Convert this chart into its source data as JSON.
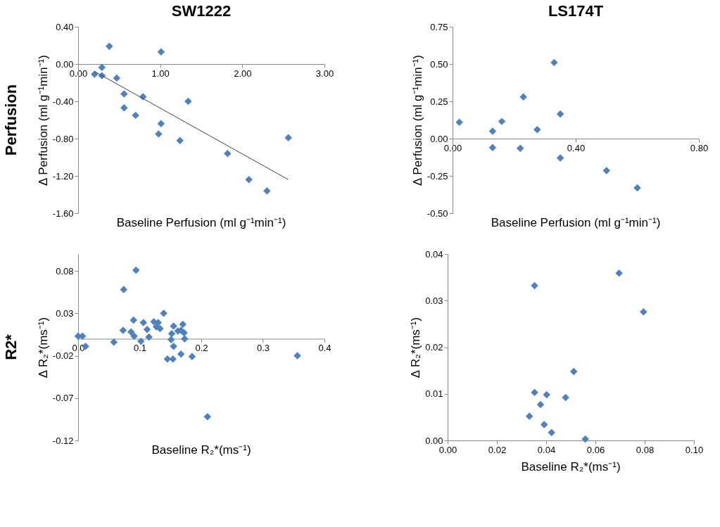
{
  "chart_data": [
    {
      "type": "scatter",
      "title": "SW1222",
      "xlabel": "Baseline Perfusion (ml g⁻¹min⁻¹)",
      "ylabel": "Δ Perfusion (ml g⁻¹min⁻¹)",
      "annotations": [
        "Perfusion"
      ],
      "marker": "diamond",
      "grid": false,
      "xlim": [
        0,
        3
      ],
      "xticks": [
        {
          "value": 0,
          "label": "0.00"
        },
        {
          "value": 1,
          "label": "1.00"
        },
        {
          "value": 2,
          "label": "2.00"
        },
        {
          "value": 3,
          "label": "3.00"
        }
      ],
      "ylim": [
        -1.6,
        0.4
      ],
      "yticks": [
        {
          "value": -1.6,
          "label": "-1.60"
        },
        {
          "value": -1.2,
          "label": "-1.20"
        },
        {
          "value": -0.8,
          "label": "-0.80"
        },
        {
          "value": -0.4,
          "label": "-0.40"
        },
        {
          "value": 0,
          "label": "0.00"
        },
        {
          "value": 0.4,
          "label": "0.40"
        }
      ],
      "series": [
        {
          "color": "#4f81bd",
          "x": [
            0.38,
            1.01,
            0.29,
            0.2,
            0.29,
            0.47,
            0.56,
            0.79,
            1.34,
            0.56,
            0.7,
            1.01,
            0.98,
            1.24,
            2.56,
            1.82,
            2.08,
            2.3
          ],
          "values": [
            0.19,
            0.13,
            -0.035,
            -0.11,
            -0.125,
            -0.15,
            -0.32,
            -0.35,
            -0.4,
            -0.47,
            -0.55,
            -0.64,
            -0.75,
            -0.82,
            -0.79,
            -0.96,
            -1.24,
            -1.36
          ]
        },
        {
          "type": "line",
          "color": "#404040",
          "marker": "none",
          "x": [
            0.2,
            2.56
          ],
          "values": [
            -0.08,
            -1.24
          ]
        }
      ]
    },
    {
      "type": "scatter",
      "title": "LS174T",
      "xlabel": "Baseline Perfusion (ml g⁻¹min⁻¹)",
      "ylabel": "Δ Perfusion (ml g⁻¹min⁻¹)",
      "marker": "diamond",
      "grid": false,
      "xlim": [
        0,
        0.8
      ],
      "xticks": [
        {
          "value": 0,
          "label": "0.00"
        },
        {
          "value": 0.4,
          "label": "0.40"
        },
        {
          "value": 0.8,
          "label": "0.80"
        }
      ],
      "ylim": [
        -0.5,
        0.75
      ],
      "yticks": [
        {
          "value": -0.5,
          "label": "-0.50"
        },
        {
          "value": -0.25,
          "label": "-0.25"
        },
        {
          "value": 0,
          "label": "0.00"
        },
        {
          "value": 0.25,
          "label": "0.25"
        },
        {
          "value": 0.5,
          "label": "0.50"
        },
        {
          "value": 0.75,
          "label": "0.75"
        }
      ],
      "series": [
        {
          "color": "#4f81bd",
          "x": [
            0.022,
            0.13,
            0.16,
            0.13,
            0.22,
            0.23,
            0.275,
            0.33,
            0.35,
            0.35,
            0.5,
            0.6
          ],
          "values": [
            0.11,
            0.05,
            0.115,
            -0.06,
            -0.065,
            0.28,
            0.06,
            0.51,
            0.165,
            -0.13,
            -0.215,
            -0.33
          ]
        }
      ]
    },
    {
      "type": "scatter",
      "xlabel": "Baseline R₂*(ms⁻¹)",
      "ylabel": "Δ R₂*(ms⁻¹)",
      "annotations": [
        "R2*"
      ],
      "marker": "diamond",
      "grid": false,
      "xlim": [
        0,
        0.4
      ],
      "xticks": [
        {
          "value": 0,
          "label": "0.0"
        },
        0.1,
        0.2,
        0.3,
        0.4
      ],
      "ylim": [
        -0.12,
        0.1
      ],
      "yticks": [
        -0.12,
        -0.07,
        -0.02,
        0.03,
        0.08
      ],
      "series": [
        {
          "color": "#4f81bd",
          "x": [
            0.094,
            0.074,
            0.139,
            0.09,
            0.106,
            0.123,
            0.13,
            0.127,
            0.133,
            0.112,
            0.073,
            0.155,
            0.17,
            0.086,
            0.091,
            0.115,
            0.0,
            0.007,
            0.012,
            0.058,
            0.102,
            0.152,
            0.162,
            0.167,
            0.172,
            0.151,
            0.173,
            0.155,
            0.167,
            0.185,
            0.145,
            0.154,
            0.21,
            0.356
          ],
          "values": [
            0.081,
            0.058,
            0.03,
            0.022,
            0.019,
            0.02,
            0.019,
            0.014,
            0.012,
            0.011,
            0.01,
            0.015,
            0.017,
            0.008,
            0.003,
            0.002,
            0.003,
            0.003,
            -0.009,
            -0.004,
            -0.003,
            0.006,
            0.009,
            0.01,
            0.007,
            -0.001,
            0.0,
            -0.009,
            -0.018,
            -0.021,
            -0.024,
            -0.024,
            -0.092,
            -0.02
          ]
        }
      ]
    },
    {
      "type": "scatter",
      "xlabel": "Baseline R₂*(ms⁻¹)",
      "ylabel": "Δ R₂*(ms⁻¹)",
      "marker": "diamond",
      "grid": false,
      "xlim": [
        0,
        0.1
      ],
      "xticks": [
        {
          "value": 0,
          "label": "0.00"
        },
        {
          "value": 0.02,
          "label": "0.02"
        },
        {
          "value": 0.04,
          "label": "0.04"
        },
        {
          "value": 0.06,
          "label": "0.06"
        },
        {
          "value": 0.08,
          "label": "0.08"
        },
        {
          "value": 0.1,
          "label": "0.10"
        }
      ],
      "ylim": [
        0,
        0.04
      ],
      "yticks": [
        {
          "value": 0,
          "label": "0.00"
        },
        {
          "value": 0.01,
          "label": "0.01"
        },
        {
          "value": 0.02,
          "label": "0.02"
        },
        {
          "value": 0.03,
          "label": "0.03"
        },
        {
          "value": 0.04,
          "label": "0.04"
        }
      ],
      "series": [
        {
          "color": "#4f81bd",
          "x": [
            0.0696,
            0.0353,
            0.0795,
            0.0512,
            0.0353,
            0.0402,
            0.0479,
            0.0377,
            0.0332,
            0.0392,
            0.0422,
            0.0559
          ],
          "values": [
            0.0359,
            0.0332,
            0.0276,
            0.0148,
            0.0103,
            0.0098,
            0.0092,
            0.0077,
            0.0052,
            0.0034,
            0.0017,
            0.0003
          ]
        }
      ]
    }
  ]
}
